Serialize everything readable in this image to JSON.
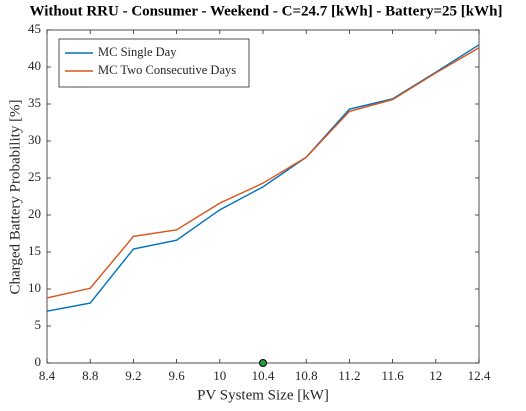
{
  "chart_data": {
    "type": "line",
    "title": "Without RRU - Consumer - Weekend - C=24.7 [kWh] - Battery=25 [kWh]",
    "xlabel": "PV System Size [kW]",
    "ylabel": "Charged Battery Probability [%]",
    "x": [
      8.4,
      8.8,
      9.2,
      9.6,
      10,
      10.4,
      10.8,
      11.2,
      11.6,
      12,
      12.4
    ],
    "series": [
      {
        "name": "MC Single Day",
        "color": "#0072bd",
        "values": [
          7.0,
          8.1,
          15.4,
          16.6,
          20.7,
          23.8,
          27.8,
          34.3,
          35.7,
          39.3,
          43.0
        ]
      },
      {
        "name": "MC Two Consecutive Days",
        "color": "#d95319",
        "values": [
          8.8,
          10.1,
          17.1,
          18.0,
          21.6,
          24.3,
          27.8,
          34.0,
          35.6,
          39.2,
          42.6
        ]
      }
    ],
    "marker": {
      "x": 10.4,
      "y": 0,
      "color": "#1f9e3a"
    },
    "xlim": [
      8.4,
      12.4
    ],
    "xticks": [
      8.4,
      8.8,
      9.2,
      9.6,
      10,
      10.4,
      10.8,
      11.2,
      11.6,
      12,
      12.4
    ],
    "ylim": [
      0,
      45
    ],
    "yticks": [
      0,
      5,
      10,
      15,
      20,
      25,
      30,
      35,
      40,
      45
    ],
    "grid": false,
    "legend": "top-left"
  }
}
